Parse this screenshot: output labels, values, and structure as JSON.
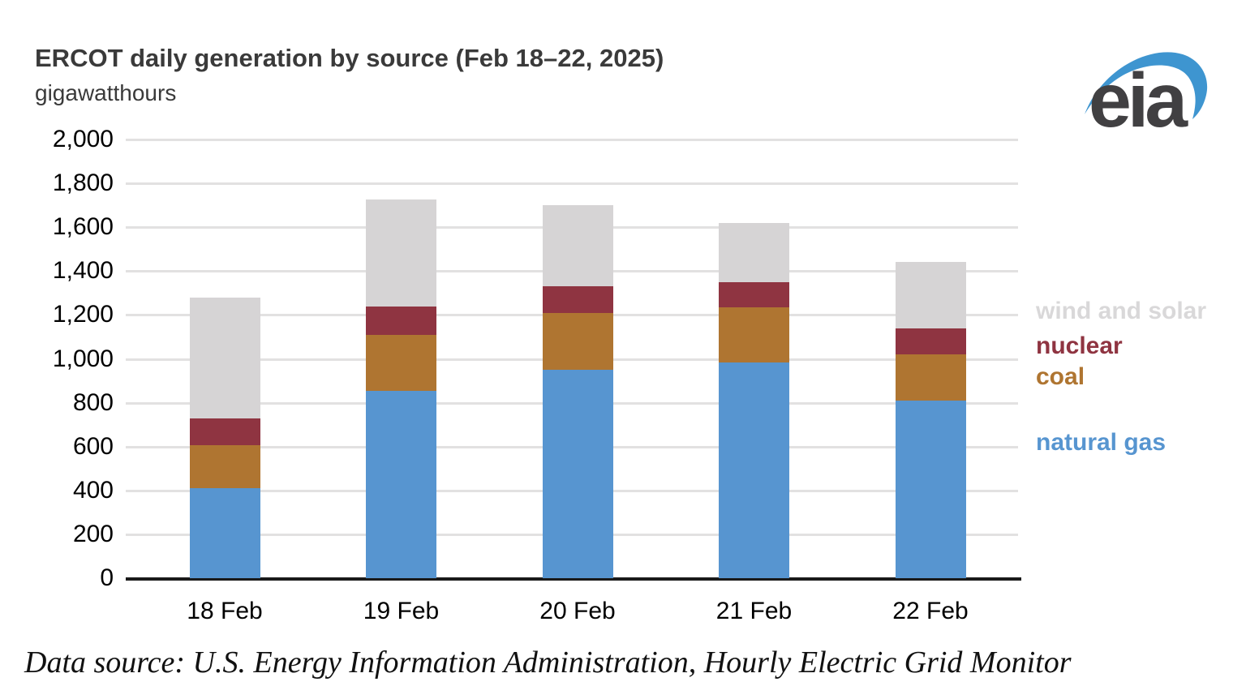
{
  "header": {
    "title": "ERCOT daily generation by source (Feb 18–22, 2025)",
    "subtitle": "gigawatthours"
  },
  "logo": {
    "text": "eia",
    "text_color": "#414042",
    "swoosh_color": "#3e95d0"
  },
  "chart_data": {
    "type": "bar",
    "stacked": true,
    "title": "ERCOT daily generation by source (Feb 18–22, 2025)",
    "ylabel": "gigawatthours",
    "categories": [
      "18 Feb",
      "19 Feb",
      "20 Feb",
      "21 Feb",
      "22 Feb"
    ],
    "series": [
      {
        "name": "natural gas",
        "color": "#5795d0",
        "values": [
          410,
          855,
          950,
          985,
          810
        ]
      },
      {
        "name": "coal",
        "color": "#af7531",
        "values": [
          195,
          255,
          260,
          250,
          210
        ]
      },
      {
        "name": "nuclear",
        "color": "#8f3441",
        "values": [
          125,
          130,
          120,
          115,
          120
        ]
      },
      {
        "name": "wind and solar",
        "color": "#d6d4d5",
        "values": [
          550,
          485,
          370,
          270,
          300
        ]
      }
    ],
    "totals": [
      1280,
      1725,
      1700,
      1620,
      1440
    ],
    "ylim": [
      0,
      2000
    ],
    "ytick_interval": 200,
    "ytick_labels": [
      "0",
      "200",
      "400",
      "600",
      "800",
      "1,000",
      "1,200",
      "1,400",
      "1,600",
      "1,800",
      "2,000"
    ],
    "grid": true,
    "legend_position": "right"
  },
  "legend": {
    "items": [
      {
        "label": "wind and solar",
        "color": "#d9d8d9"
      },
      {
        "label": "nuclear",
        "color": "#8f3441"
      },
      {
        "label": "coal",
        "color": "#af7531"
      },
      {
        "label": "natural gas",
        "color": "#5795d0"
      }
    ]
  },
  "footer": {
    "text": "Data source: U.S. Energy Information Administration, Hourly Electric Grid Monitor"
  }
}
